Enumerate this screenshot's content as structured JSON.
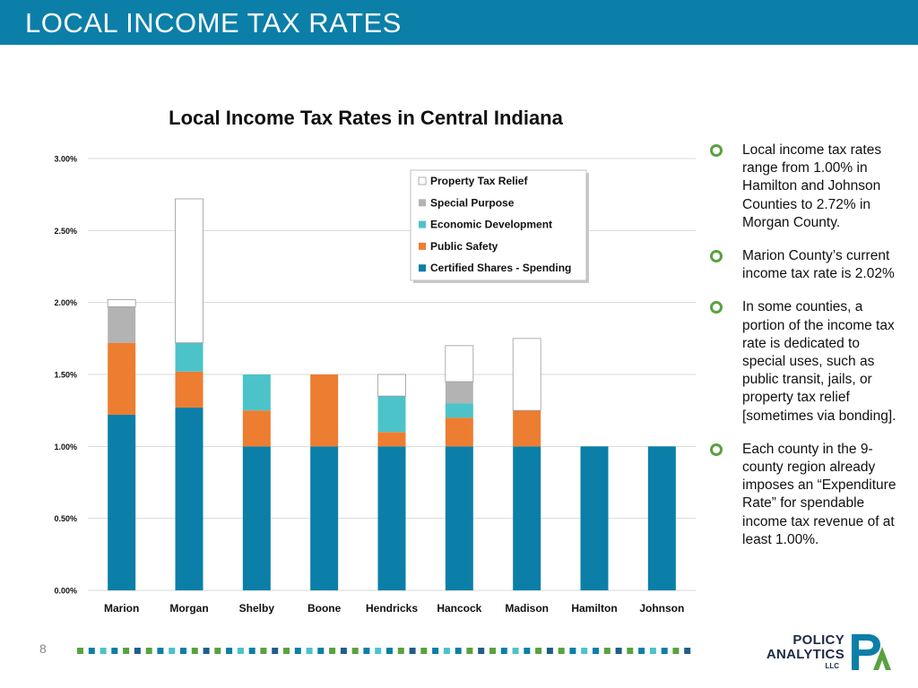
{
  "slide": {
    "title": "LOCAL INCOME TAX RATES",
    "page_number": "8"
  },
  "bullets": [
    "Local income tax rates range from 1.00% in Hamilton and Johnson Counties to 2.72% in Morgan County.",
    "Marion County’s current income tax rate is 2.02%",
    "In some counties, a portion of the income tax rate is dedicated to special uses, such as public transit, jails, or property tax relief [sometimes via bonding].",
    "Each county in the 9-county region already imposes an “Expenditure Rate” for spendable income tax revenue of at least 1.00%."
  ],
  "logo": {
    "line1": "POLICY",
    "line2": "ANALYTICS",
    "line3": "LLC",
    "monogram": "PA"
  },
  "colors": {
    "title_bar": "#0b7fa8",
    "bullet": "#5aa13f",
    "certified": "#0b7fa8",
    "public_safety": "#ed7d31",
    "economic_development": "#4cc3c9",
    "special_purpose": "#b3b3b3",
    "property_tax_relief": "#ffffff"
  },
  "chart_data": {
    "type": "bar",
    "stacked": true,
    "title": "Local Income Tax Rates in Central Indiana",
    "xlabel": "",
    "ylabel": "",
    "ylim": [
      0,
      3.0
    ],
    "yticks": [
      "0.00%",
      "0.50%",
      "1.00%",
      "1.50%",
      "2.00%",
      "2.50%",
      "3.00%"
    ],
    "grid": true,
    "legend_position": "top-center",
    "categories": [
      "Marion",
      "Morgan",
      "Shelby",
      "Boone",
      "Hendricks",
      "Hancock",
      "Madison",
      "Hamilton",
      "Johnson"
    ],
    "series": [
      {
        "name": "Certified Shares - Spending",
        "color": "#0b7fa8",
        "values": [
          1.22,
          1.27,
          1.0,
          1.0,
          1.0,
          1.0,
          1.0,
          1.0,
          1.0
        ]
      },
      {
        "name": "Public Safety",
        "color": "#ed7d31",
        "values": [
          0.5,
          0.25,
          0.25,
          0.5,
          0.1,
          0.2,
          0.25,
          0,
          0
        ]
      },
      {
        "name": "Economic Development",
        "color": "#4cc3c9",
        "values": [
          0,
          0.2,
          0.25,
          0,
          0.25,
          0.1,
          0,
          0,
          0
        ]
      },
      {
        "name": "Special Purpose",
        "color": "#b3b3b3",
        "values": [
          0.25,
          0,
          0,
          0,
          0,
          0.15,
          0,
          0,
          0
        ]
      },
      {
        "name": "Property Tax Relief",
        "color": "#ffffff",
        "values": [
          0.05,
          1.0,
          0,
          0,
          0.15,
          0.25,
          0.5,
          0,
          0
        ]
      }
    ],
    "legend_order": [
      "Property Tax Relief",
      "Special Purpose",
      "Economic Development",
      "Public Safety",
      "Certified Shares - Spending"
    ]
  }
}
